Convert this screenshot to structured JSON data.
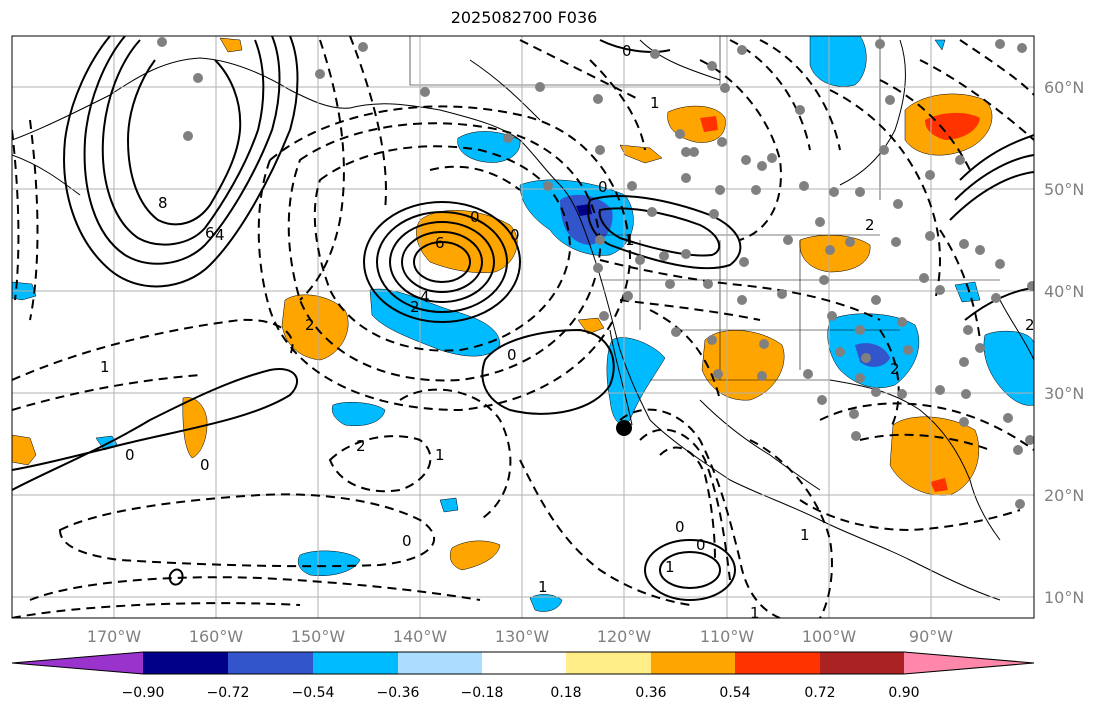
{
  "title": "2025082700 F036",
  "lon_ticks": [
    "170°W",
    "160°W",
    "150°W",
    "140°W",
    "130°W",
    "120°W",
    "110°W",
    "100°W",
    "90°W"
  ],
  "lat_ticks": [
    "60°N",
    "50°N",
    "40°N",
    "30°N",
    "20°N",
    "10°N"
  ],
  "colorbar": {
    "labels": [
      "−0.90",
      "−0.72",
      "−0.54",
      "−0.36",
      "−0.18",
      "0.18",
      "0.36",
      "0.54",
      "0.72",
      "0.90"
    ],
    "colors": [
      "#9933cc",
      "#000088",
      "#3355cc",
      "#00bbff",
      "#aaddff",
      "#ffffff",
      "#ffee88",
      "#ffa500",
      "#ff3300",
      "#aa2222",
      "#ff88aa"
    ]
  },
  "contour_labels": [
    "0",
    "1",
    "2",
    "4",
    "6",
    "8",
    "0",
    "2",
    "4",
    "6",
    "1",
    "0",
    "2",
    "1",
    "0",
    "0",
    "1",
    "0",
    "2",
    "1",
    "0",
    "2",
    "2",
    "0",
    "0",
    "1",
    "1",
    "0",
    "1"
  ],
  "palette": {
    "orange": "#ffa500",
    "red": "#ff3300",
    "blue": "#00bbff",
    "dark_blue": "#3355cc",
    "navy": "#000088",
    "grid": "#b0b0b0",
    "dot": "#808080"
  }
}
